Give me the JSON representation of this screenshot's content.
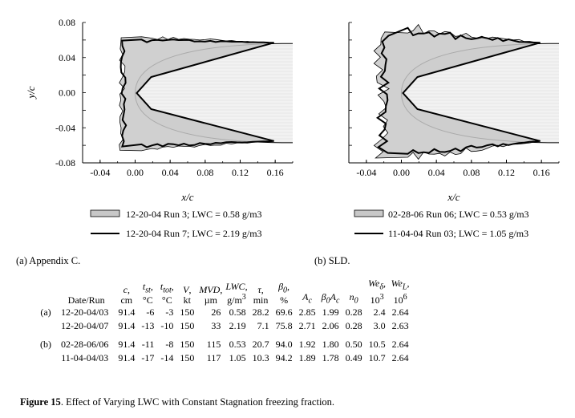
{
  "figure": {
    "caption_label": "Figure 15",
    "caption_text": ". Effect of Varying LWC with Constant Stagnation freezing fraction."
  },
  "chart_data": [
    {
      "type": "area",
      "panel_label": "(a)  Appendix C.",
      "xlabel": "x/c",
      "ylabel": "y/c",
      "xlim": [
        -0.06,
        0.18
      ],
      "ylim": [
        -0.08,
        0.08
      ],
      "x_ticks": [
        "-0.04",
        "0.00",
        "0.04",
        "0.08",
        "0.12",
        "0.16"
      ],
      "y_ticks": [
        "0.08",
        "0.04",
        "0.00",
        "-0.04",
        "-0.08"
      ],
      "grid": false,
      "legend_position": "bottom",
      "series": [
        {
          "name": "12-20-04 Run 3; LWC = 0.58 g/m3",
          "style": "filled-gray"
        },
        {
          "name": "12-20-04 Run 7; LWC = 2.19 g/m3",
          "style": "thick-line"
        }
      ]
    },
    {
      "type": "area",
      "panel_label": "(b)  SLD.",
      "xlabel": "x/c",
      "ylabel": "",
      "xlim": [
        -0.06,
        0.18
      ],
      "ylim": [
        -0.08,
        0.08
      ],
      "x_ticks": [
        "-0.04",
        "0.00",
        "0.04",
        "0.08",
        "0.12",
        "0.16"
      ],
      "grid": false,
      "legend_position": "bottom",
      "series": [
        {
          "name": "02-28-06 Run 06; LWC = 0.53 g/m3",
          "style": "filled-gray"
        },
        {
          "name": "11-04-04 Run 03; LWC = 1.05 g/m3",
          "style": "thick-line"
        }
      ]
    }
  ],
  "table": {
    "headers": [
      "Date/Run",
      "c, cm",
      "tst, °C",
      "ttot, °C",
      "V, kt",
      "MVD, µm",
      "LWC, g/m3",
      "τ, min",
      "β0, %",
      "Ac",
      "β0Ac",
      "n0",
      "Weδ, 10^3",
      "WeL, 10^6"
    ],
    "groups": [
      {
        "label": "(a)",
        "rows": [
          [
            "12-20-04/03",
            "91.4",
            "-6",
            "-3",
            "150",
            "26",
            "0.58",
            "28.2",
            "69.6",
            "2.85",
            "1.99",
            "0.28",
            "2.4",
            "2.64"
          ],
          [
            "12-20-04/07",
            "91.4",
            "-13",
            "-10",
            "150",
            "33",
            "2.19",
            "7.1",
            "75.8",
            "2.71",
            "2.06",
            "0.28",
            "3.0",
            "2.63"
          ]
        ]
      },
      {
        "label": "(b)",
        "rows": [
          [
            "02-28-06/06",
            "91.4",
            "-11",
            "-8",
            "150",
            "115",
            "0.53",
            "20.7",
            "94.0",
            "1.92",
            "1.80",
            "0.50",
            "10.5",
            "2.64"
          ],
          [
            "11-04-04/03",
            "91.4",
            "-17",
            "-14",
            "150",
            "117",
            "1.05",
            "10.3",
            "94.2",
            "1.89",
            "1.78",
            "0.49",
            "10.7",
            "2.64"
          ]
        ]
      }
    ]
  }
}
